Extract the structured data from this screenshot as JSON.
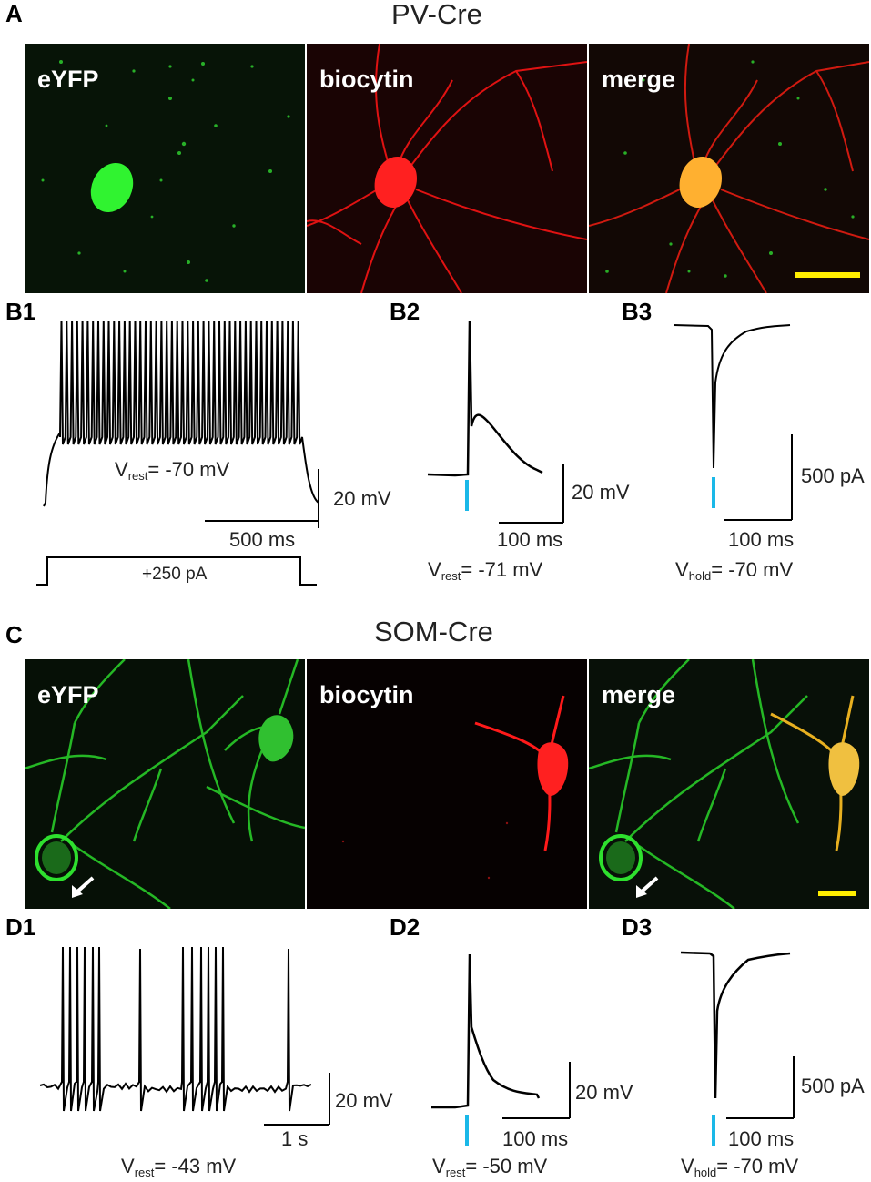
{
  "panels": {
    "A": {
      "letter": "A",
      "title": "PV-Cre",
      "channels": [
        "eYFP",
        "biocytin",
        "merge"
      ],
      "colors": {
        "eyfp": "#22dd22",
        "biocytin": "#ff1a1a",
        "merge_soma": "#ffb020",
        "scalebar": "#ffee00"
      }
    },
    "B1": {
      "letter": "B1",
      "vrest": {
        "v": "V",
        "sub": "rest",
        "value": "= -70 mV"
      },
      "scale_y": "20 mV",
      "scale_x": "500 ms",
      "stimulus": "+250 pA"
    },
    "B2": {
      "letter": "B2",
      "scale_y": "20 mV",
      "scale_x": "100 ms",
      "vrest": {
        "v": "V",
        "sub": "rest",
        "value": "= -71 mV"
      }
    },
    "B3": {
      "letter": "B3",
      "scale_y": "500 pA",
      "scale_x": "100 ms",
      "vhold": {
        "v": "V",
        "sub": "hold",
        "value": "= -70 mV"
      }
    },
    "C": {
      "letter": "C",
      "title": "SOM-Cre",
      "channels": [
        "eYFP",
        "biocytin",
        "merge"
      ]
    },
    "D1": {
      "letter": "D1",
      "scale_y": "20 mV",
      "scale_x": "1 s",
      "vrest": {
        "v": "V",
        "sub": "rest",
        "value": "= -43 mV"
      }
    },
    "D2": {
      "letter": "D2",
      "scale_y": "20 mV",
      "scale_x": "100 ms",
      "vrest": {
        "v": "V",
        "sub": "rest",
        "value": "= -50 mV"
      }
    },
    "D3": {
      "letter": "D3",
      "scale_y": "500 pA",
      "scale_x": "100 ms",
      "vhold": {
        "v": "V",
        "sub": "hold",
        "value": "= -70 mV"
      }
    }
  },
  "colors": {
    "light_pulse": "#1ab8e8",
    "trace": "#000000"
  }
}
